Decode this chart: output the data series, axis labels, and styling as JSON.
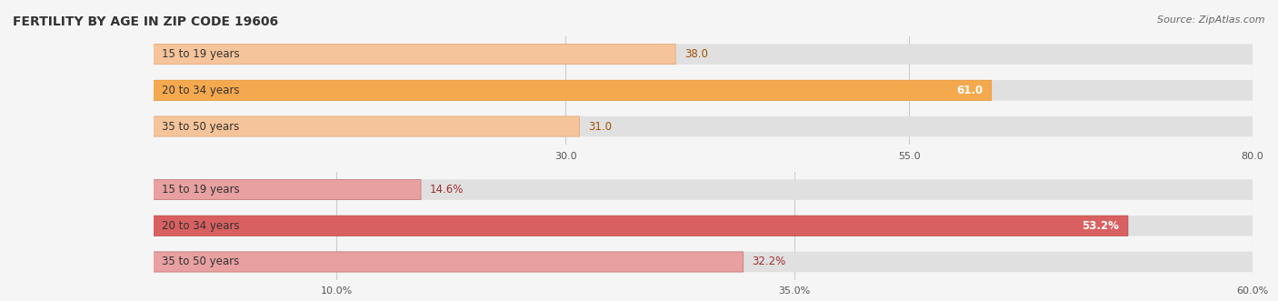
{
  "title": "FERTILITY BY AGE IN ZIP CODE 19606",
  "source": "Source: ZipAtlas.com",
  "top_chart": {
    "categories": [
      "15 to 19 years",
      "20 to 34 years",
      "35 to 50 years"
    ],
    "values": [
      38.0,
      61.0,
      31.0
    ],
    "xlim": [
      0,
      80.0
    ],
    "xticks": [
      30.0,
      55.0,
      80.0
    ],
    "xtick_labels": [
      "30.0",
      "55.0",
      "80.0"
    ],
    "bar_colors": [
      "#f5c49a",
      "#f5a94e",
      "#f5c49a"
    ],
    "bar_edge_colors": [
      "#e8a070",
      "#e89030",
      "#e8a070"
    ],
    "value_colors": [
      "#a05000",
      "#ffffff",
      "#a05000"
    ],
    "value_inside": [
      false,
      true,
      false
    ],
    "value_suffix": ""
  },
  "bottom_chart": {
    "categories": [
      "15 to 19 years",
      "20 to 34 years",
      "35 to 50 years"
    ],
    "values": [
      14.6,
      53.2,
      32.2
    ],
    "xlim": [
      0,
      60.0
    ],
    "xticks": [
      10.0,
      35.0,
      60.0
    ],
    "xtick_labels": [
      "10.0%",
      "35.0%",
      "60.0%"
    ],
    "bar_colors": [
      "#e8a0a0",
      "#d96060",
      "#e8a0a0"
    ],
    "bar_edge_colors": [
      "#c07070",
      "#b84040",
      "#c07070"
    ],
    "value_colors": [
      "#a03030",
      "#ffffff",
      "#a03030"
    ],
    "value_inside": [
      false,
      true,
      false
    ],
    "value_suffix": "%"
  },
  "label_fontsize": 8.5,
  "value_fontsize": 8.5,
  "title_fontsize": 10,
  "source_fontsize": 8,
  "background_color": "#f5f5f5",
  "bar_bg_color": "#e0e0e0",
  "bar_height": 0.55
}
